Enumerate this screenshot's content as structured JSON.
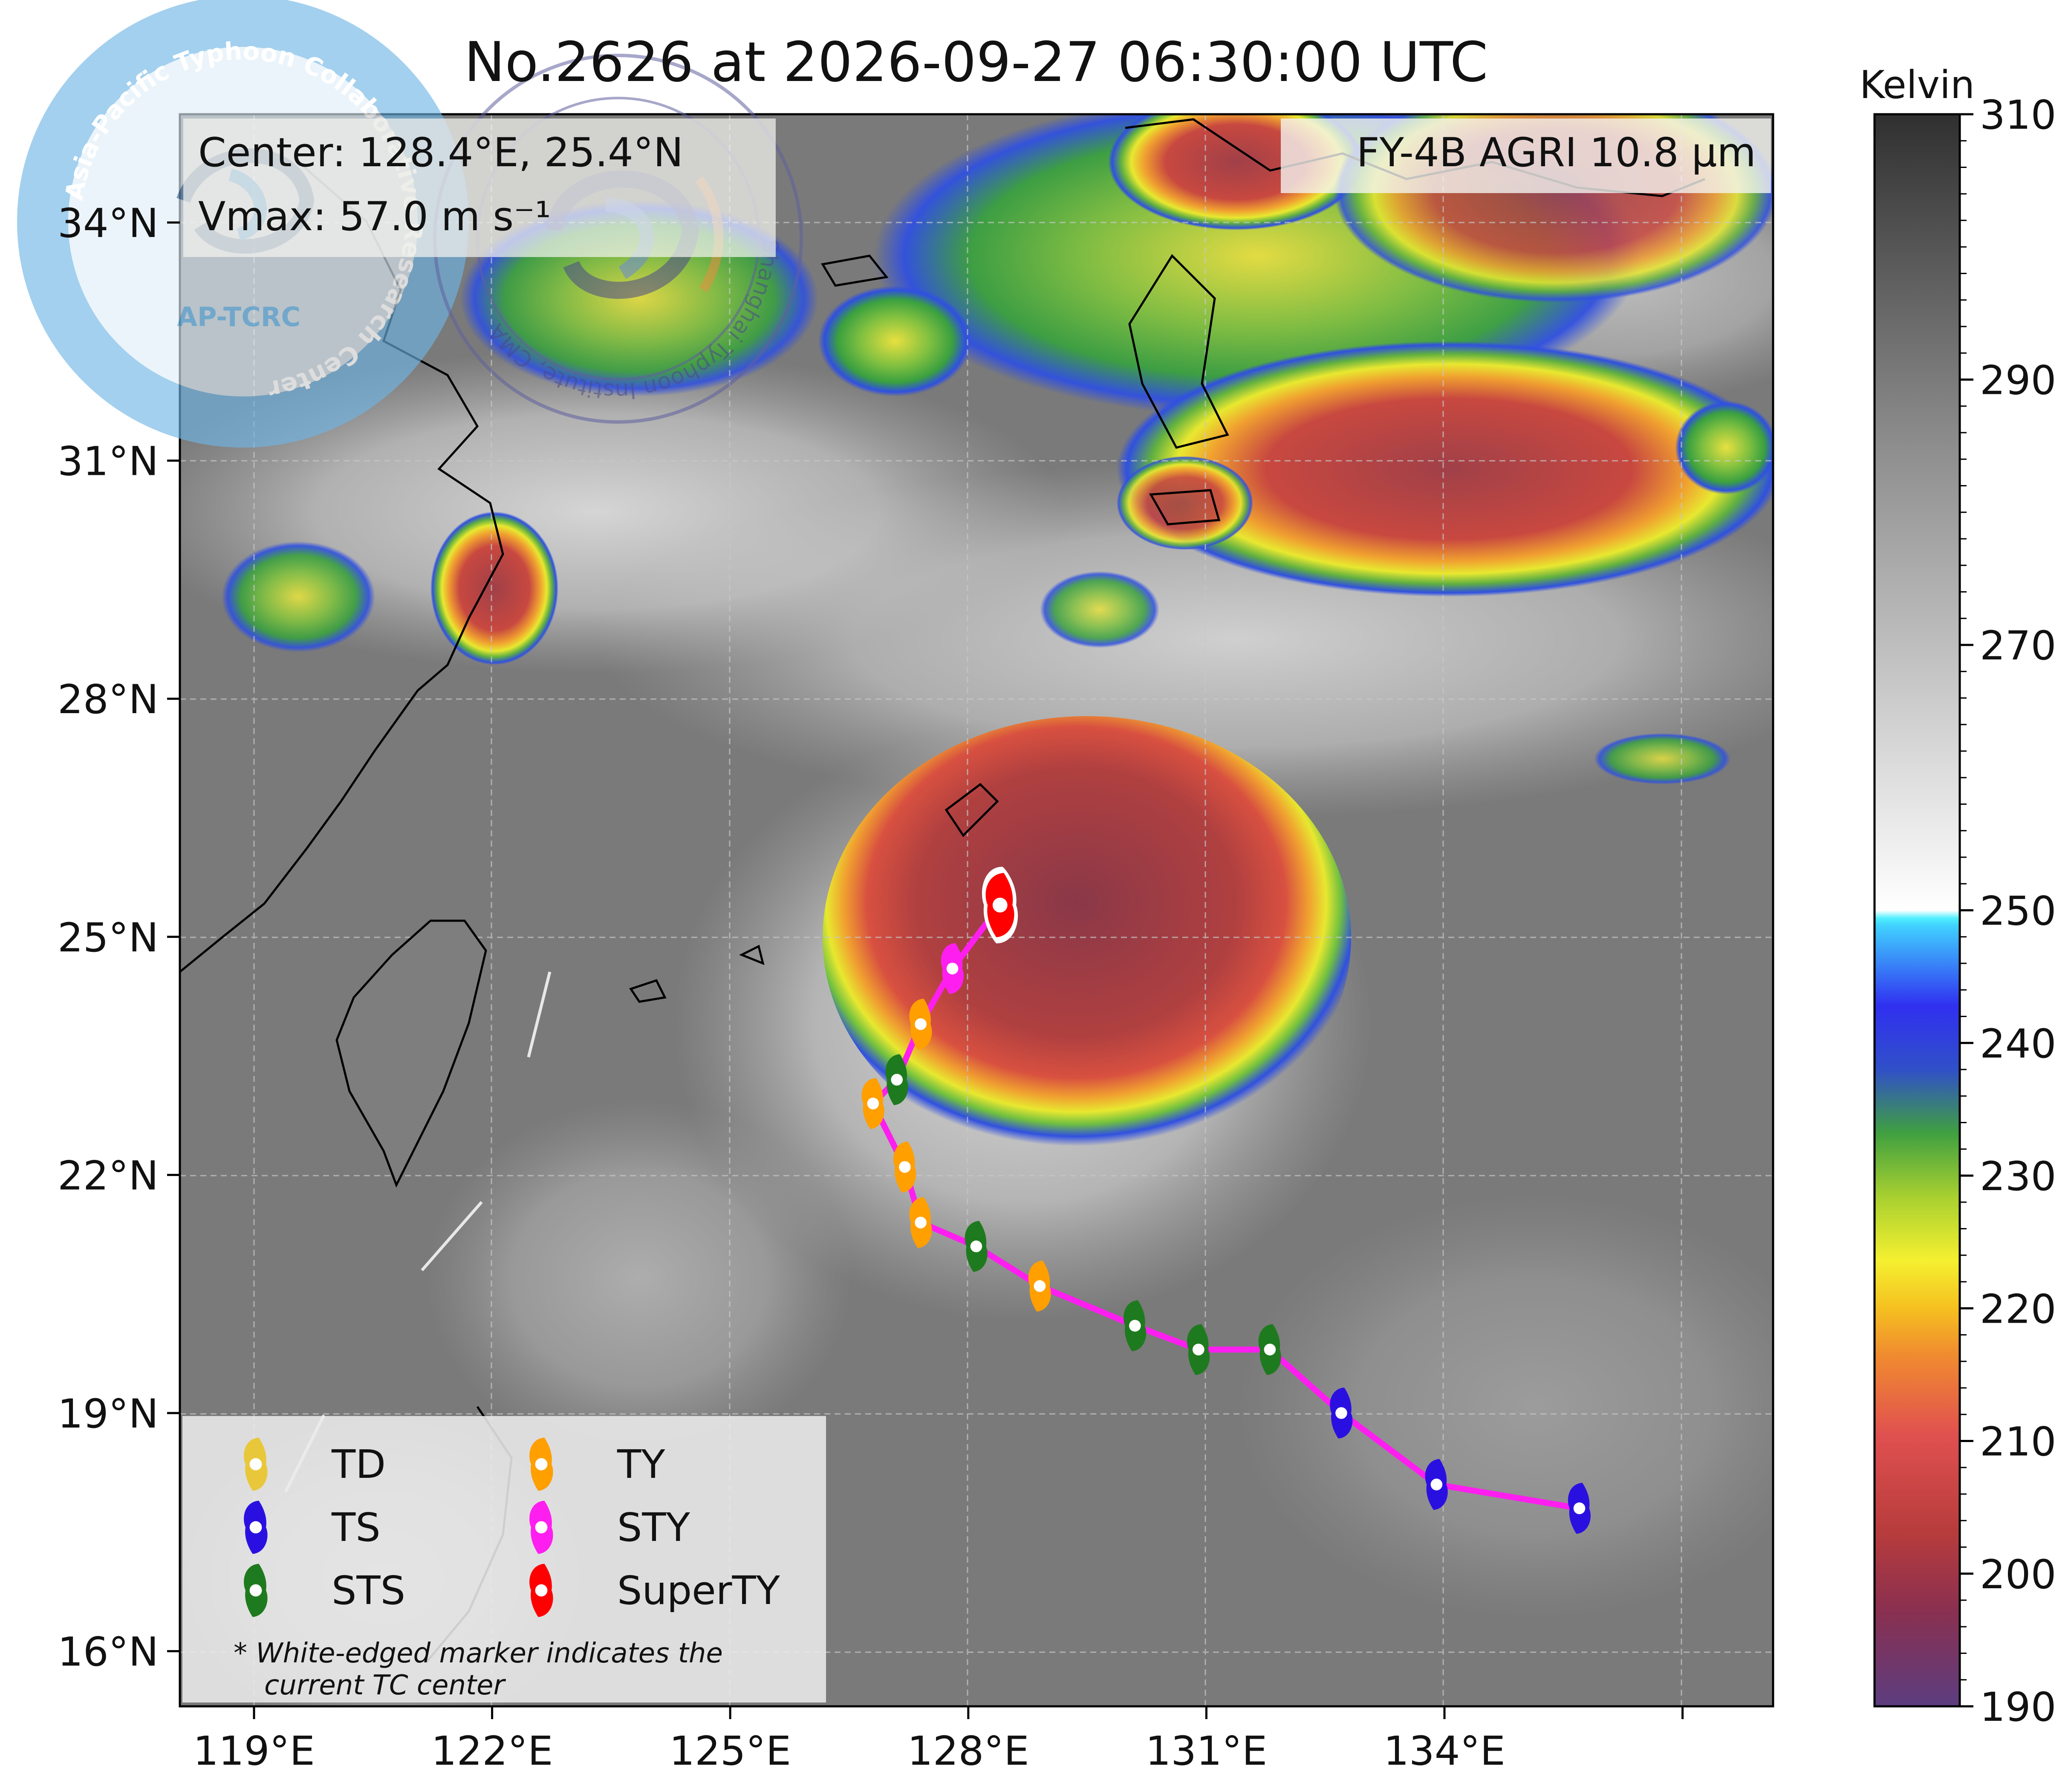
{
  "title": "No.2626 at 2026-09-27 06:30:00 UTC",
  "info": {
    "center": "Center: 128.4°E, 25.4°N",
    "vmax": "Vmax: 57.0 m s⁻¹",
    "product": "FY-4B AGRI 10.8 µm"
  },
  "axes": {
    "lon_ticks": [
      "119°E",
      "122°E",
      "125°E",
      "128°E",
      "131°E",
      "134°E"
    ],
    "lat_ticks": [
      "34°N",
      "31°N",
      "28°N",
      "25°N",
      "22°N",
      "19°N",
      "16°N"
    ],
    "lon_range": [
      117.0,
      137.0
    ],
    "lat_range": [
      15.3,
      35.3
    ]
  },
  "colorbar": {
    "unit": "Kelvin",
    "ticks": [
      "310",
      "290",
      "270",
      "250",
      "240",
      "230",
      "220",
      "210",
      "200",
      "190"
    ],
    "range": [
      190,
      310
    ]
  },
  "legend": {
    "items": [
      {
        "label": "TD",
        "color": "#e8c83a"
      },
      {
        "label": "TY",
        "color": "#ff9f00"
      },
      {
        "label": "TS",
        "color": "#2a10e0"
      },
      {
        "label": "STY",
        "color": "#ff1ef0"
      },
      {
        "label": "STS",
        "color": "#1e7a1e"
      },
      {
        "label": "SuperTY",
        "color": "#ff0000"
      }
    ],
    "note_line1": "*  White-edged marker indicates the",
    "note_line2": "current TC center"
  },
  "logos": {
    "left_text": "AP-TCRC",
    "left_ring": "Asia-Pacific Typhoon Collaborative Research Center",
    "right_ring": "Shanghai Typhoon Institute, CMA"
  },
  "chart_data": {
    "type": "scatter",
    "track": [
      {
        "lon": 135.7,
        "lat": 17.8,
        "cat": "TS"
      },
      {
        "lon": 133.9,
        "lat": 18.1,
        "cat": "TS"
      },
      {
        "lon": 132.7,
        "lat": 19.0,
        "cat": "TS"
      },
      {
        "lon": 131.8,
        "lat": 19.8,
        "cat": "STS"
      },
      {
        "lon": 130.9,
        "lat": 19.8,
        "cat": "STS"
      },
      {
        "lon": 130.1,
        "lat": 20.1,
        "cat": "STS"
      },
      {
        "lon": 128.9,
        "lat": 20.6,
        "cat": "TY"
      },
      {
        "lon": 128.1,
        "lat": 21.1,
        "cat": "STS"
      },
      {
        "lon": 127.4,
        "lat": 21.4,
        "cat": "TY"
      },
      {
        "lon": 127.2,
        "lat": 22.1,
        "cat": "TY"
      },
      {
        "lon": 126.8,
        "lat": 22.9,
        "cat": "TY"
      },
      {
        "lon": 127.1,
        "lat": 23.2,
        "cat": "STS"
      },
      {
        "lon": 127.4,
        "lat": 23.9,
        "cat": "TY"
      },
      {
        "lon": 127.8,
        "lat": 24.6,
        "cat": "STY"
      },
      {
        "lon": 128.4,
        "lat": 25.4,
        "cat": "SuperTY",
        "current": true
      }
    ]
  }
}
